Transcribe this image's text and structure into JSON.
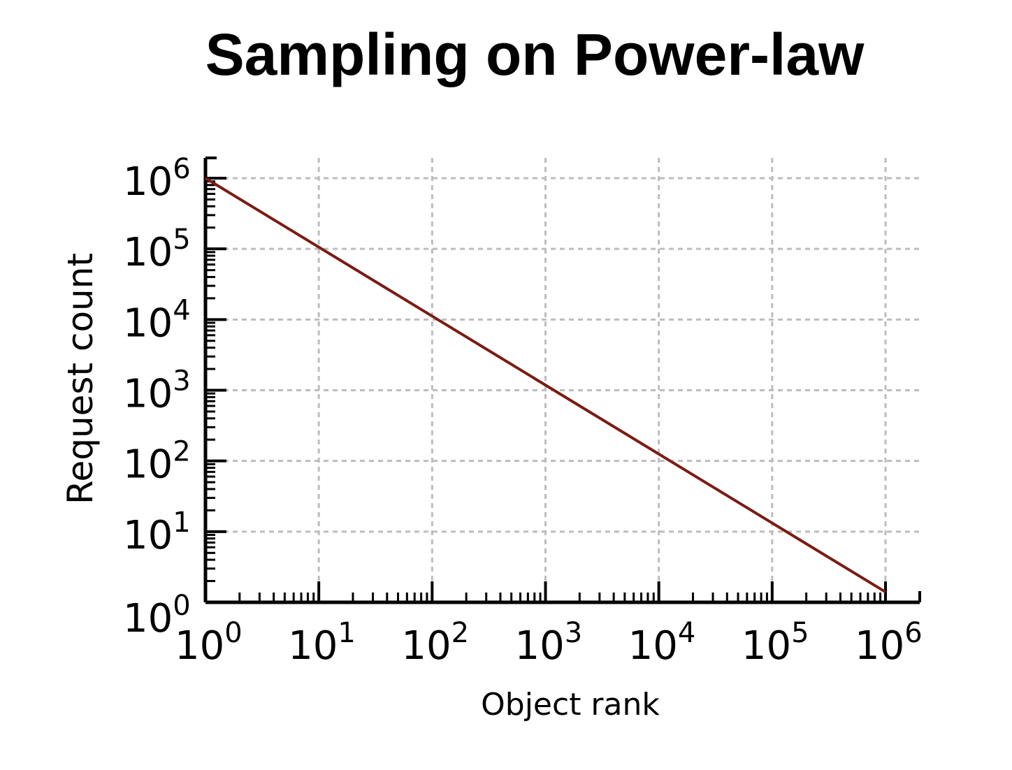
{
  "slide": {
    "title": "Sampling on Power-law"
  },
  "chart_data": {
    "type": "line",
    "title": "Sampling on Power-law",
    "xlabel": "Object rank",
    "ylabel": "Request count",
    "xscale": "log",
    "yscale": "log",
    "xlim": [
      1,
      1000000
    ],
    "ylim": [
      1,
      1000000
    ],
    "grid": true,
    "x_ticks": [
      {
        "base": "10",
        "exp": "0"
      },
      {
        "base": "10",
        "exp": "1"
      },
      {
        "base": "10",
        "exp": "2"
      },
      {
        "base": "10",
        "exp": "3"
      },
      {
        "base": "10",
        "exp": "4"
      },
      {
        "base": "10",
        "exp": "5"
      },
      {
        "base": "10",
        "exp": "6"
      }
    ],
    "y_ticks": [
      {
        "base": "10",
        "exp": "0"
      },
      {
        "base": "10",
        "exp": "1"
      },
      {
        "base": "10",
        "exp": "2"
      },
      {
        "base": "10",
        "exp": "3"
      },
      {
        "base": "10",
        "exp": "4"
      },
      {
        "base": "10",
        "exp": "5"
      },
      {
        "base": "10",
        "exp": "6"
      }
    ],
    "series": [
      {
        "color": "#7a1c12",
        "x": [
          1,
          1000000
        ],
        "y": [
          1000000,
          1.4
        ]
      }
    ],
    "colors": {
      "line": "#7a1c12",
      "grid": "#bdbdbd",
      "axis": "#000000"
    }
  }
}
